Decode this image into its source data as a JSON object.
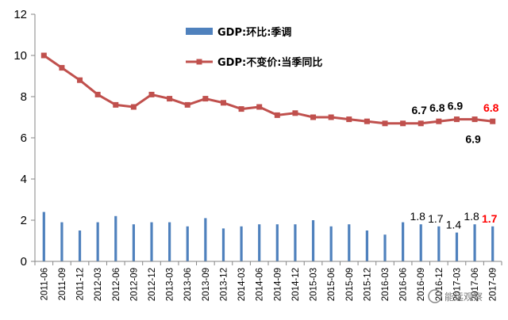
{
  "chart_data": {
    "type": "bar",
    "categories": [
      "2011-06",
      "2011-09",
      "2011-12",
      "2012-03",
      "2012-06",
      "2012-09",
      "2012-12",
      "2013-03",
      "2013-06",
      "2013-09",
      "2013-12",
      "2014-03",
      "2014-06",
      "2014-09",
      "2014-12",
      "2015-03",
      "2015-06",
      "2015-09",
      "2015-12",
      "2016-03",
      "2016-06",
      "2016-09",
      "2016-12",
      "2017-03",
      "2017-06",
      "2017-09"
    ],
    "series": [
      {
        "name": "GDP:环比:季调",
        "kind": "bar",
        "color": "#4f81bd",
        "values": [
          2.4,
          1.9,
          1.5,
          1.9,
          2.2,
          1.8,
          1.9,
          1.9,
          1.7,
          2.1,
          1.6,
          1.7,
          1.8,
          1.8,
          1.8,
          2.0,
          1.7,
          1.8,
          1.5,
          1.3,
          1.9,
          1.8,
          1.7,
          1.4,
          1.8,
          1.7
        ]
      },
      {
        "name": "GDP:不变价:当季同比",
        "kind": "line",
        "color": "#c0504d",
        "values": [
          10.0,
          9.4,
          8.8,
          8.1,
          7.6,
          7.5,
          8.1,
          7.9,
          7.6,
          7.9,
          7.7,
          7.4,
          7.5,
          7.1,
          7.2,
          7.0,
          7.0,
          6.9,
          6.8,
          6.7,
          6.7,
          6.7,
          6.8,
          6.9,
          6.9,
          6.8
        ]
      }
    ],
    "ylim": [
      0,
      12
    ],
    "yticks": [
      "0",
      "2",
      "4",
      "6",
      "8",
      "10",
      "12"
    ],
    "legend_position": "top-center",
    "grid": false,
    "annotations": {
      "line": [
        {
          "index": 21,
          "text": "6.7",
          "color": "#000000",
          "bold": true,
          "place": "above"
        },
        {
          "index": 22,
          "text": "6.8",
          "color": "#000000",
          "bold": true,
          "place": "above"
        },
        {
          "index": 23,
          "text": "6.9",
          "color": "#000000",
          "bold": true,
          "place": "above"
        },
        {
          "index": 24,
          "text": "6.9",
          "color": "#000000",
          "bold": true,
          "place": "below"
        },
        {
          "index": 25,
          "text": "6.8",
          "color": "#ff0000",
          "bold": true,
          "place": "above"
        }
      ],
      "bar": [
        {
          "index": 21,
          "text": "1.8",
          "color": "#000000",
          "bold": false
        },
        {
          "index": 22,
          "text": "1.7",
          "color": "#000000",
          "bold": false
        },
        {
          "index": 23,
          "text": "1.4",
          "color": "#000000",
          "bold": false
        },
        {
          "index": 24,
          "text": "1.8",
          "color": "#000000",
          "bold": false
        },
        {
          "index": 25,
          "text": "1.7",
          "color": "#ff0000",
          "bold": true
        }
      ]
    }
  },
  "watermark": {
    "text": "能远观察"
  }
}
